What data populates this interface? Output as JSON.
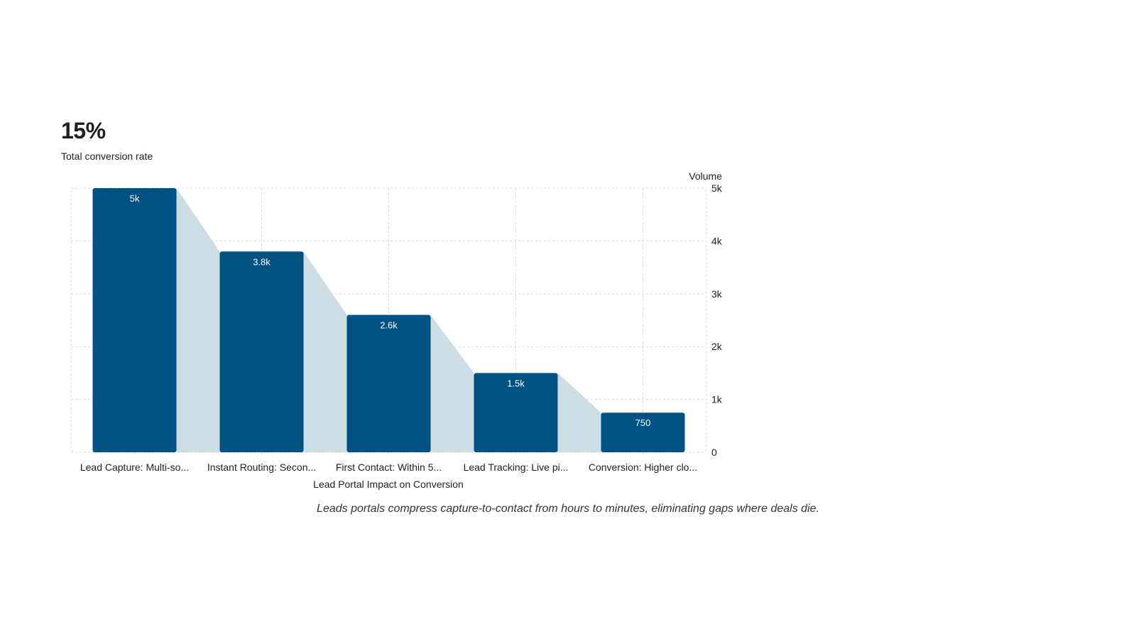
{
  "kpi": {
    "value": "15%",
    "label": "Total conversion rate"
  },
  "caption": "Leads portals compress capture-to-contact from hours to minutes, eliminating gaps where deals die.",
  "colors": {
    "bar": "#005282",
    "funnel": "#cddde6",
    "grid": "#d9d9d9",
    "text": "#222222",
    "bar_label": "#ffffff"
  },
  "chart_data": {
    "type": "bar",
    "xlabel": "Lead Portal Impact on Conversion",
    "ylabel": "Volume",
    "ylim": [
      0,
      5000
    ],
    "yticks": [
      0,
      1000,
      2000,
      3000,
      4000,
      5000
    ],
    "ytick_labels": [
      "0",
      "1k",
      "2k",
      "3k",
      "4k",
      "5k"
    ],
    "categories": [
      "Lead Capture: Multi-so...",
      "Instant Routing: Secon...",
      "First Contact: Within 5...",
      "Lead Tracking: Live pi...",
      "Conversion: Higher clo..."
    ],
    "values": [
      5000,
      3800,
      2600,
      1500,
      750
    ],
    "data_labels": [
      "5k",
      "3.8k",
      "2.6k",
      "1.5k",
      "750"
    ],
    "grid": true,
    "y_axis_side": "right"
  }
}
